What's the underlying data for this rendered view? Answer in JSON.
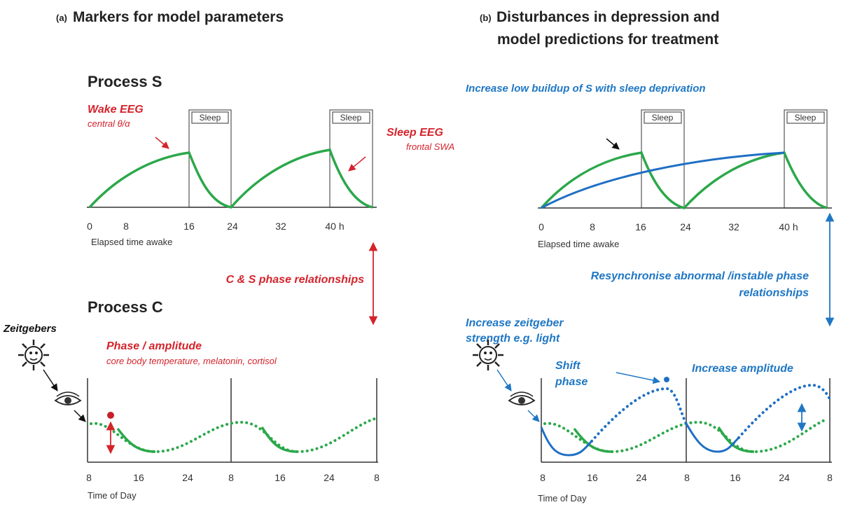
{
  "panel_a": {
    "title_prefix": "(a)",
    "title": "Markers for model parameters",
    "process_s": {
      "heading": "Process S",
      "wake_label": "Wake EEG",
      "wake_sub": "central θ/α",
      "sleep_label": "Sleep EEG",
      "sleep_sub": "frontal SWA",
      "sleep_boxes": [
        "Sleep",
        "Sleep"
      ],
      "ticks": [
        "0",
        "8",
        "16",
        "24",
        "32",
        "40 h"
      ],
      "axis_label": "Elapsed time awake"
    },
    "phase_relationships": "C & S phase relationships",
    "process_c": {
      "heading": "Process C",
      "zeitgebers": "Zeitgebers",
      "phase_label": "Phase / amplitude",
      "phase_sub": "core body temperature, melatonin, cortisol",
      "ticks": [
        "8",
        "16",
        "24",
        "8",
        "16",
        "24",
        "8"
      ],
      "axis_label": "Time of Day"
    }
  },
  "panel_b": {
    "title_prefix": "(b)",
    "title_lines": [
      "Disturbances in depression and",
      "model predictions for treatment"
    ],
    "process_s": {
      "annotation": "Increase low buildup of S with sleep deprivation",
      "sleep_boxes": [
        "Sleep",
        "Sleep"
      ],
      "ticks": [
        "0",
        "8",
        "16",
        "24",
        "32",
        "40 h"
      ],
      "axis_label": "Elapsed time awake"
    },
    "resynchronise_lines": [
      "Resynchronise abnormal /instable phase",
      "relationships"
    ],
    "process_c": {
      "zeitgeber_lines": [
        "Increase zeitgeber",
        "strength e.g. light"
      ],
      "shift_lines": [
        "Shift",
        "phase"
      ],
      "amplitude": "Increase amplitude",
      "ticks": [
        "8",
        "16",
        "24",
        "8",
        "16",
        "24",
        "8"
      ],
      "axis_label": "Time of Day"
    }
  }
}
